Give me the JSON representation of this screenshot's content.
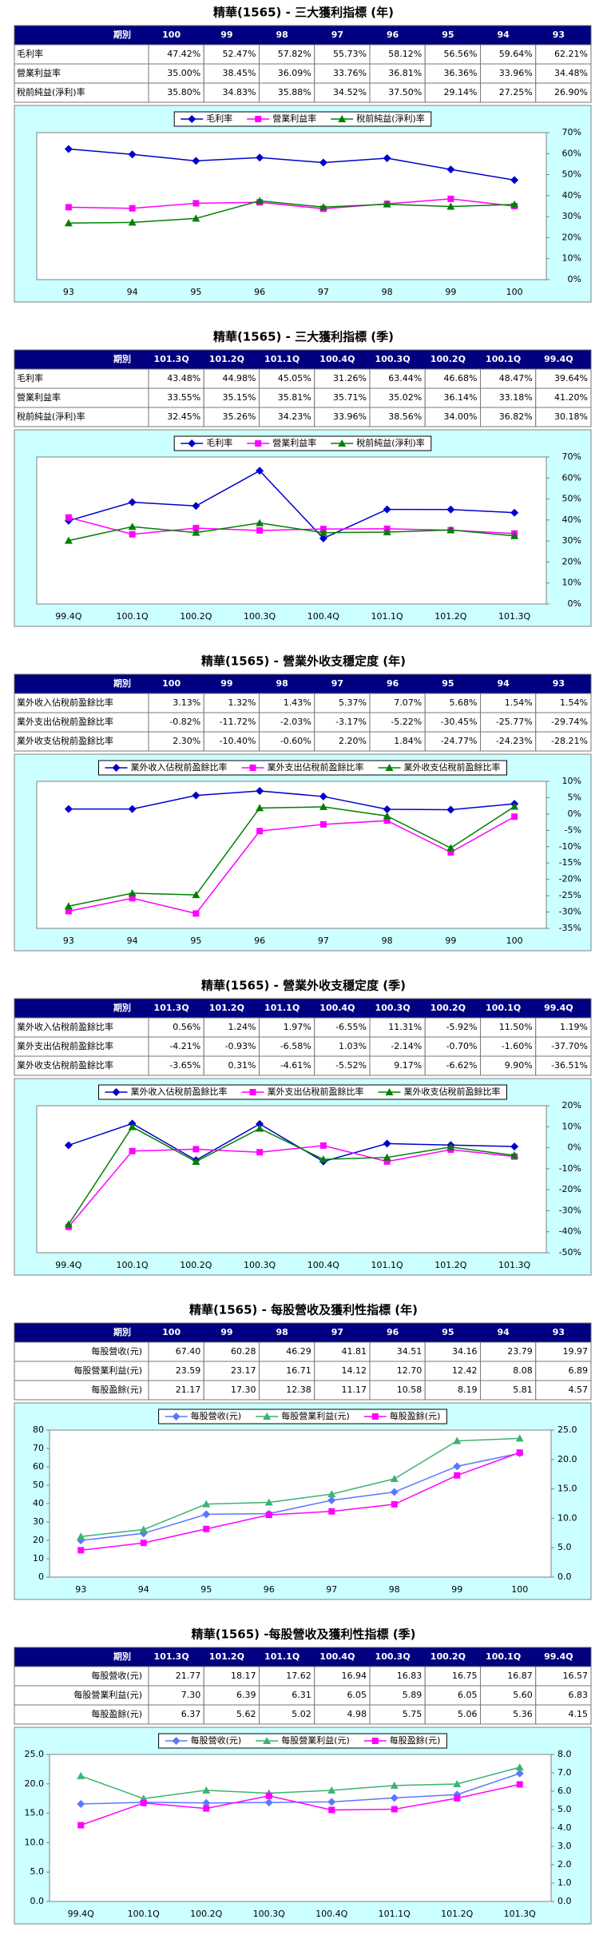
{
  "chart_data": [
    {
      "type": "line",
      "title": "精華(1565) - 三大獲利指標 (年)",
      "table_header": "期別",
      "y_axis": "right",
      "categories": [
        "93",
        "94",
        "95",
        "96",
        "97",
        "98",
        "99",
        "100"
      ],
      "series": [
        {
          "name": "毛利率",
          "color": "#0000cc",
          "marker": "diamond",
          "values": [
            62.21,
            59.64,
            56.56,
            58.12,
            55.73,
            57.82,
            52.47,
            47.42
          ],
          "value_labels": [
            "62.21%",
            "59.64%",
            "56.56%",
            "58.12%",
            "55.73%",
            "57.82%",
            "52.47%",
            "47.42%"
          ]
        },
        {
          "name": "營業利益率",
          "color": "#ff00ff",
          "marker": "square",
          "values": [
            34.48,
            33.96,
            36.36,
            36.81,
            33.76,
            36.09,
            38.45,
            35.0
          ],
          "value_labels": [
            "34.48%",
            "33.96%",
            "36.36%",
            "36.81%",
            "33.76%",
            "36.09%",
            "38.45%",
            "35.00%"
          ]
        },
        {
          "name": "稅前純益(淨利)率",
          "color": "#008000",
          "marker": "triangle",
          "values": [
            26.9,
            27.25,
            29.14,
            37.5,
            34.52,
            35.88,
            34.83,
            35.8
          ],
          "value_labels": [
            "26.90%",
            "27.25%",
            "29.14%",
            "37.50%",
            "34.52%",
            "35.88%",
            "34.83%",
            "35.80%"
          ]
        }
      ],
      "ylim": [
        0,
        70
      ],
      "yticks": [
        {
          "value": 0,
          "label": "0%"
        },
        {
          "value": 10,
          "label": "10%"
        },
        {
          "value": 20,
          "label": "20%"
        },
        {
          "value": 30,
          "label": "30%"
        },
        {
          "value": 40,
          "label": "40%"
        },
        {
          "value": 50,
          "label": "50%"
        },
        {
          "value": 60,
          "label": "60%"
        },
        {
          "value": 70,
          "label": "70%"
        }
      ]
    },
    {
      "type": "line",
      "title": "精華(1565) - 三大獲利指標 (季)",
      "table_header": "期別",
      "y_axis": "right",
      "categories": [
        "99.4Q",
        "100.1Q",
        "100.2Q",
        "100.3Q",
        "100.4Q",
        "101.1Q",
        "101.2Q",
        "101.3Q"
      ],
      "series": [
        {
          "name": "毛利率",
          "color": "#0000cc",
          "marker": "diamond",
          "values": [
            39.64,
            48.47,
            46.68,
            63.44,
            31.26,
            45.05,
            44.98,
            43.48
          ],
          "value_labels": [
            "39.64%",
            "48.47%",
            "46.68%",
            "63.44%",
            "31.26%",
            "45.05%",
            "44.98%",
            "43.48%"
          ]
        },
        {
          "name": "營業利益率",
          "color": "#ff00ff",
          "marker": "square",
          "values": [
            41.2,
            33.18,
            36.14,
            35.02,
            35.71,
            35.81,
            35.15,
            33.55
          ],
          "value_labels": [
            "41.20%",
            "33.18%",
            "36.14%",
            "35.02%",
            "35.71%",
            "35.81%",
            "35.15%",
            "33.55%"
          ]
        },
        {
          "name": "稅前純益(淨利)率",
          "color": "#008000",
          "marker": "triangle",
          "values": [
            30.18,
            36.82,
            34.0,
            38.56,
            33.96,
            34.23,
            35.26,
            32.45
          ],
          "value_labels": [
            "30.18%",
            "36.82%",
            "34.00%",
            "38.56%",
            "33.96%",
            "34.23%",
            "35.26%",
            "32.45%"
          ]
        }
      ],
      "ylim": [
        0,
        70
      ],
      "yticks": [
        {
          "value": 0,
          "label": "0%"
        },
        {
          "value": 10,
          "label": "10%"
        },
        {
          "value": 20,
          "label": "20%"
        },
        {
          "value": 30,
          "label": "30%"
        },
        {
          "value": 40,
          "label": "40%"
        },
        {
          "value": 50,
          "label": "50%"
        },
        {
          "value": 60,
          "label": "60%"
        },
        {
          "value": 70,
          "label": "70%"
        }
      ]
    },
    {
      "type": "line",
      "title": "精華(1565) - 營業外收支穩定度 (年)",
      "table_header": "期別",
      "y_axis": "right",
      "categories": [
        "93",
        "94",
        "95",
        "96",
        "97",
        "98",
        "99",
        "100"
      ],
      "series": [
        {
          "name": "業外收入佔稅前盈餘比率",
          "color": "#0000cc",
          "marker": "diamond",
          "values": [
            1.54,
            1.54,
            5.68,
            7.07,
            5.37,
            1.43,
            1.32,
            3.13
          ],
          "value_labels": [
            "1.54%",
            "1.54%",
            "5.68%",
            "7.07%",
            "5.37%",
            "1.43%",
            "1.32%",
            "3.13%"
          ]
        },
        {
          "name": "業外支出佔稅前盈餘比率",
          "color": "#ff00ff",
          "marker": "square",
          "values": [
            -29.74,
            -25.77,
            -30.45,
            -5.22,
            -3.17,
            -2.03,
            -11.72,
            -0.82
          ],
          "value_labels": [
            "-29.74%",
            "-25.77%",
            "-30.45%",
            "-5.22%",
            "-3.17%",
            "-2.03%",
            "-11.72%",
            "-0.82%"
          ]
        },
        {
          "name": "業外收支佔稅前盈餘比率",
          "color": "#008000",
          "marker": "triangle",
          "values": [
            -28.21,
            -24.23,
            -24.77,
            1.84,
            2.2,
            -0.6,
            -10.4,
            2.3
          ],
          "value_labels": [
            "-28.21%",
            "-24.23%",
            "-24.77%",
            "1.84%",
            "2.20%",
            "-0.60%",
            "-10.40%",
            "2.30%"
          ]
        }
      ],
      "ylim": [
        -35,
        10
      ],
      "yticks": [
        {
          "value": -35,
          "label": "-35%"
        },
        {
          "value": -30,
          "label": "-30%"
        },
        {
          "value": -25,
          "label": "-25%"
        },
        {
          "value": -20,
          "label": "-20%"
        },
        {
          "value": -15,
          "label": "-15%"
        },
        {
          "value": -10,
          "label": "-10%"
        },
        {
          "value": -5,
          "label": "-5%"
        },
        {
          "value": 0,
          "label": "0%"
        },
        {
          "value": 5,
          "label": "5%"
        },
        {
          "value": 10,
          "label": "10%"
        }
      ]
    },
    {
      "type": "line",
      "title": "精華(1565) - 營業外收支穩定度 (季)",
      "table_header": "期別",
      "y_axis": "right",
      "categories": [
        "99.4Q",
        "100.1Q",
        "100.2Q",
        "100.3Q",
        "100.4Q",
        "101.1Q",
        "101.2Q",
        "101.3Q"
      ],
      "series": [
        {
          "name": "業外收入佔稅前盈餘比率",
          "color": "#0000cc",
          "marker": "diamond",
          "values": [
            1.19,
            11.5,
            -5.92,
            11.31,
            -6.55,
            1.97,
            1.24,
            0.56
          ],
          "value_labels": [
            "1.19%",
            "11.50%",
            "-5.92%",
            "11.31%",
            "-6.55%",
            "1.97%",
            "1.24%",
            "0.56%"
          ]
        },
        {
          "name": "業外支出佔稅前盈餘比率",
          "color": "#ff00ff",
          "marker": "square",
          "values": [
            -37.7,
            -1.6,
            -0.7,
            -2.14,
            1.03,
            -6.58,
            -0.93,
            -4.21
          ],
          "value_labels": [
            "-37.70%",
            "-1.60%",
            "-0.70%",
            "-2.14%",
            "1.03%",
            "-6.58%",
            "-0.93%",
            "-4.21%"
          ]
        },
        {
          "name": "業外收支佔稅前盈餘比率",
          "color": "#008000",
          "marker": "triangle",
          "values": [
            -36.51,
            9.9,
            -6.62,
            9.17,
            -5.52,
            -4.61,
            0.31,
            -3.65
          ],
          "value_labels": [
            "-36.51%",
            "9.90%",
            "-6.62%",
            "9.17%",
            "-5.52%",
            "-4.61%",
            "0.31%",
            "-3.65%"
          ]
        }
      ],
      "ylim": [
        -50,
        20
      ],
      "yticks": [
        {
          "value": -50,
          "label": "-50%"
        },
        {
          "value": -40,
          "label": "-40%"
        },
        {
          "value": -30,
          "label": "-30%"
        },
        {
          "value": -20,
          "label": "-20%"
        },
        {
          "value": -10,
          "label": "-10%"
        },
        {
          "value": 0,
          "label": "0%"
        },
        {
          "value": 10,
          "label": "10%"
        },
        {
          "value": 20,
          "label": "20%"
        }
      ]
    },
    {
      "type": "line",
      "title": "精華(1565) - 每股營收及獲利性指標 (年)",
      "table_header": "期別",
      "categories": [
        "93",
        "94",
        "95",
        "96",
        "97",
        "98",
        "99",
        "100"
      ],
      "series": [
        {
          "name": "每股營收(元)",
          "color": "#5a78ff",
          "marker": "diamond",
          "values": [
            19.97,
            23.79,
            34.16,
            34.51,
            41.81,
            46.29,
            60.28,
            67.4
          ],
          "value_labels": [
            "19.97",
            "23.79",
            "34.16",
            "34.51",
            "41.81",
            "46.29",
            "60.28",
            "67.40"
          ]
        },
        {
          "name": "每股營業利益(元)",
          "color": "#3cb371",
          "marker": "triangle",
          "axis": "y2",
          "values": [
            6.89,
            8.08,
            12.42,
            12.7,
            14.12,
            16.71,
            23.17,
            23.59
          ],
          "value_labels": [
            "6.89",
            "8.08",
            "12.42",
            "12.70",
            "14.12",
            "16.71",
            "23.17",
            "23.59"
          ]
        },
        {
          "name": "每股盈餘(元)",
          "color": "#ff00ff",
          "marker": "square",
          "axis": "y2",
          "values": [
            4.57,
            5.81,
            8.19,
            10.58,
            11.17,
            12.38,
            17.3,
            21.17
          ],
          "value_labels": [
            "4.57",
            "5.81",
            "8.19",
            "10.58",
            "11.17",
            "12.38",
            "17.30",
            "21.17"
          ]
        }
      ],
      "ylim": [
        0,
        80
      ],
      "yticks": [
        0,
        10,
        20,
        30,
        40,
        50,
        60,
        70,
        80
      ],
      "y2lim": [
        0,
        25
      ],
      "y2ticks": [
        {
          "value": 0,
          "label": "0.0"
        },
        {
          "value": 5,
          "label": "5.0"
        },
        {
          "value": 10,
          "label": "10.0"
        },
        {
          "value": 15,
          "label": "15.0"
        },
        {
          "value": 20,
          "label": "20.0"
        },
        {
          "value": 25,
          "label": "25.0"
        }
      ]
    },
    {
      "type": "line",
      "title": "精華(1565) -每股營收及獲利性指標 (季)",
      "table_header": "期別",
      "categories": [
        "99.4Q",
        "100.1Q",
        "100.2Q",
        "100.3Q",
        "100.4Q",
        "101.1Q",
        "101.2Q",
        "101.3Q"
      ],
      "series": [
        {
          "name": "每股營收(元)",
          "color": "#5a78ff",
          "marker": "diamond",
          "values": [
            16.57,
            16.87,
            16.75,
            16.83,
            16.94,
            17.62,
            18.17,
            21.77
          ],
          "value_labels": [
            "16.57",
            "16.87",
            "16.75",
            "16.83",
            "16.94",
            "17.62",
            "18.17",
            "21.77"
          ]
        },
        {
          "name": "每股營業利益(元)",
          "color": "#3cb371",
          "marker": "triangle",
          "axis": "y2",
          "values": [
            6.83,
            5.6,
            6.05,
            5.89,
            6.05,
            6.31,
            6.39,
            7.3
          ],
          "value_labels": [
            "6.83",
            "5.60",
            "6.05",
            "5.89",
            "6.05",
            "6.31",
            "6.39",
            "7.30"
          ]
        },
        {
          "name": "每股盈餘(元)",
          "color": "#ff00ff",
          "marker": "square",
          "axis": "y2",
          "values": [
            4.15,
            5.36,
            5.06,
            5.75,
            4.98,
            5.02,
            5.62,
            6.37
          ],
          "value_labels": [
            "4.15",
            "5.36",
            "5.06",
            "5.75",
            "4.98",
            "5.02",
            "5.62",
            "6.37"
          ]
        }
      ],
      "ylim": [
        0,
        25
      ],
      "yticks": [
        {
          "value": 0,
          "label": "0.0"
        },
        {
          "value": 5,
          "label": "5.0"
        },
        {
          "value": 10,
          "label": "10.0"
        },
        {
          "value": 15,
          "label": "15.0"
        },
        {
          "value": 20,
          "label": "20.0"
        },
        {
          "value": 25,
          "label": "25.0"
        }
      ],
      "y2lim": [
        0,
        8
      ],
      "y2ticks": [
        {
          "value": 0,
          "label": "0.0"
        },
        {
          "value": 1,
          "label": "1.0"
        },
        {
          "value": 2,
          "label": "2.0"
        },
        {
          "value": 3,
          "label": "3.0"
        },
        {
          "value": 4,
          "label": "4.0"
        },
        {
          "value": 5,
          "label": "5.0"
        },
        {
          "value": 6,
          "label": "6.0"
        },
        {
          "value": 7,
          "label": "7.0"
        },
        {
          "value": 8,
          "label": "8.0"
        }
      ]
    }
  ]
}
